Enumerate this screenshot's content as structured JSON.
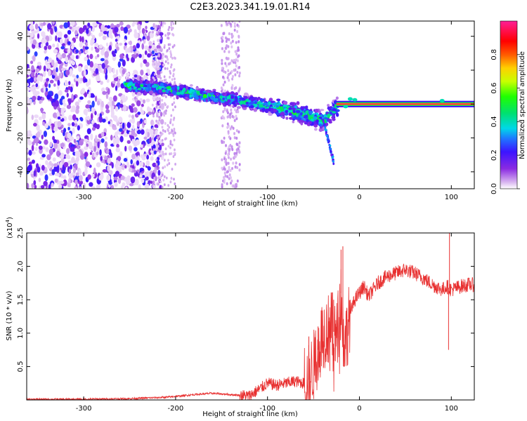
{
  "title": "C2E3.2023.341.19.01.R14",
  "chart_data": [
    {
      "type": "heatmap",
      "xlabel": "Height of straight line (km)",
      "ylabel": "Frequency (Hz)",
      "xlim": [
        -362,
        125
      ],
      "ylim": [
        -50,
        49
      ],
      "x_ticks": [
        -300,
        -200,
        -100,
        0,
        100
      ],
      "x_tick_labels": [
        "-300",
        "-200",
        "-100",
        "0",
        "100"
      ],
      "y_ticks": [
        -40,
        -20,
        0,
        20,
        40
      ],
      "y_tick_labels": [
        "-40",
        "-20",
        "0",
        "20",
        "40"
      ],
      "grid": false,
      "colorbar": {
        "label": "Normalized spectral amplitude",
        "range": [
          0,
          1
        ],
        "ticks": [
          0.0,
          0.2,
          0.4,
          0.6,
          0.8
        ],
        "tick_labels": [
          "0.0",
          "0.2",
          "0.4",
          "0.6",
          "0.8"
        ],
        "colormap": "rainbow (white-violet-blue-cyan-green-yellow-red-magenta)"
      },
      "features": [
        {
          "x_range": [
            -362,
            -215
          ],
          "freq_range": [
            -50,
            49
          ],
          "amplitude": "0.05-0.25",
          "description": "broadband noise"
        },
        {
          "x_range": [
            -150,
            -130
          ],
          "freq_range": [
            -50,
            49
          ],
          "amplitude": "0.05",
          "description": "faint vertical noise stripe"
        },
        {
          "x_range": [
            -255,
            -25
          ],
          "center_freq_hz": [
            11,
            9,
            5,
            2,
            -2,
            -6,
            -10,
            -2
          ],
          "center_x_km": [
            -255,
            -210,
            -170,
            -130,
            -90,
            -60,
            -40,
            -25
          ],
          "amplitude_peak": 0.6,
          "description": "Doppler trace"
        },
        {
          "x_range": [
            -25,
            125
          ],
          "center_freq_hz": 0,
          "amplitude_peak": 0.95,
          "description": "carrier line at 0 Hz"
        }
      ]
    },
    {
      "type": "line",
      "xlabel": "Height of straight line (km)",
      "ylabel": "SNR (10 * v/v)",
      "y_multiplier": "(x10",
      "y_multiplier_exp": "4",
      "xlim": [
        -362,
        125
      ],
      "ylim": [
        0,
        2.5
      ],
      "x_ticks": [
        -300,
        -200,
        -100,
        0,
        100
      ],
      "x_tick_labels": [
        "-300",
        "-200",
        "-100",
        "0",
        "100"
      ],
      "y_ticks": [
        0.5,
        1.0,
        1.5,
        2.0,
        2.5
      ],
      "y_tick_labels": [
        "0.5",
        "1.0",
        "1.5",
        "2.0",
        "2.5"
      ],
      "grid": false,
      "color": "#e83030",
      "series": [
        {
          "x": [
            -362,
            -300,
            -250,
            -210,
            -180,
            -160,
            -140,
            -120,
            -110,
            -100,
            -90,
            -80,
            -70,
            -60,
            -55,
            -50,
            -45,
            -40,
            -35,
            -30,
            -25,
            -22,
            -20,
            -18,
            -15,
            -10,
            -5,
            0,
            5,
            10,
            20,
            30,
            40,
            50,
            60,
            70,
            80,
            90,
            95,
            100,
            110,
            120,
            125
          ],
          "y": [
            0.01,
            0.01,
            0.02,
            0.04,
            0.08,
            0.1,
            0.08,
            0.06,
            0.15,
            0.25,
            0.22,
            0.25,
            0.28,
            0.25,
            0.3,
            0.5,
            0.75,
            1.0,
            1.05,
            1.1,
            0.9,
            1.3,
            1.6,
            1.0,
            0.9,
            1.3,
            1.5,
            1.6,
            1.7,
            1.55,
            1.75,
            1.85,
            1.9,
            1.95,
            1.9,
            1.82,
            1.72,
            1.65,
            1.7,
            1.65,
            1.7,
            1.73,
            1.72
          ]
        }
      ],
      "spikes": [
        {
          "x": -18,
          "y": 2.3
        },
        {
          "x": -20,
          "y": 2.25
        },
        {
          "x": 98,
          "y": 2.5
        },
        {
          "x": 97,
          "y": 0.75
        },
        {
          "x": -55,
          "y": 0.95
        },
        {
          "x": -45,
          "y": 1.1
        },
        {
          "x": -28,
          "y": 1.5
        }
      ]
    }
  ]
}
